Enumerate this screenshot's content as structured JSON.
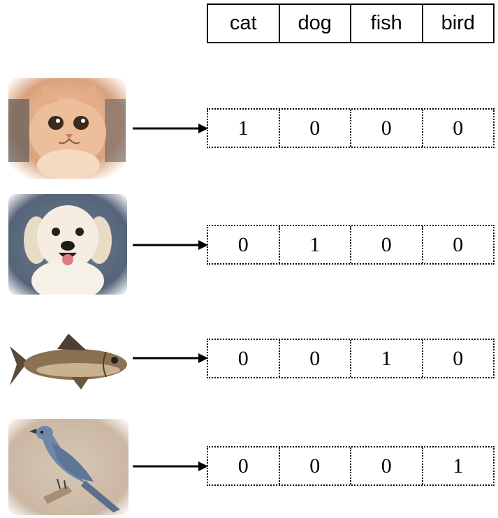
{
  "header": {
    "labels": [
      "cat",
      "dog",
      "fish",
      "bird"
    ]
  },
  "rows": [
    {
      "icon": "cat-photo-icon",
      "vector": [
        "1",
        "0",
        "0",
        "0"
      ]
    },
    {
      "icon": "dog-photo-icon",
      "vector": [
        "0",
        "1",
        "0",
        "0"
      ]
    },
    {
      "icon": "fish-photo-icon",
      "vector": [
        "0",
        "0",
        "1",
        "0"
      ]
    },
    {
      "icon": "bird-photo-icon",
      "vector": [
        "0",
        "0",
        "0",
        "1"
      ]
    }
  ],
  "colors": {
    "line": "#000000",
    "cat_fur": "#e9b48f",
    "dog_bg": "#5f6f86",
    "fish_body": "#8a7152",
    "bird_body": "#6f87a8"
  }
}
